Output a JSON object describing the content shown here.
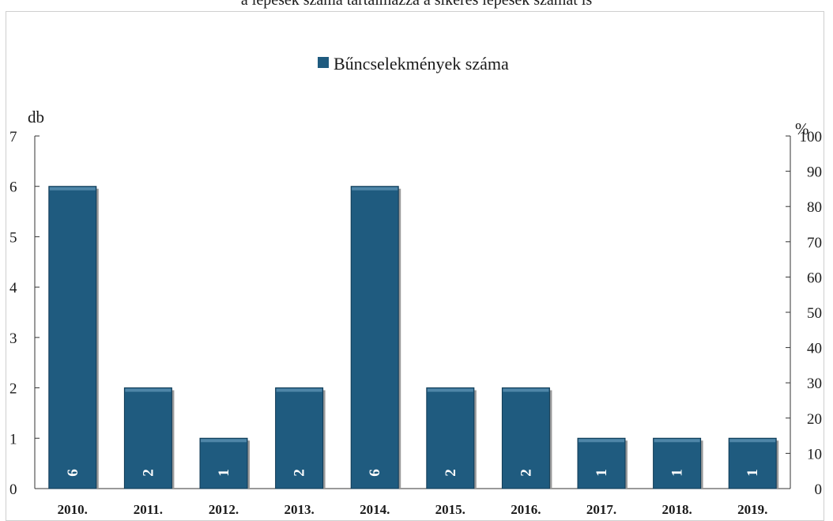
{
  "header": {
    "caption": "a lépések száma tartalmazza a sikeres lépések számát is"
  },
  "chart_data": {
    "type": "bar",
    "categories": [
      "2010.",
      "2011.",
      "2012.",
      "2013.",
      "2014.",
      "2015.",
      "2016.",
      "2017.",
      "2018.",
      "2019."
    ],
    "series": [
      {
        "name": "Bűncselekmények száma",
        "values": [
          6,
          2,
          1,
          2,
          6,
          2,
          2,
          1,
          1,
          1
        ],
        "color": "#1f5b7f"
      }
    ],
    "y_left": {
      "unit": "db",
      "ticks": [
        "0",
        "1",
        "2",
        "3",
        "4",
        "5",
        "6",
        "7"
      ],
      "ylim": [
        0,
        7
      ]
    },
    "y_right": {
      "unit": "%",
      "ticks": [
        "0",
        "10",
        "20",
        "30",
        "40",
        "50",
        "60",
        "70",
        "80",
        "90",
        "100"
      ],
      "ylim": [
        0,
        100
      ]
    },
    "data_labels": [
      "6",
      "2",
      "1",
      "2",
      "6",
      "2",
      "2",
      "1",
      "1",
      "1"
    ],
    "legend_position": "top-center",
    "grid": false
  }
}
